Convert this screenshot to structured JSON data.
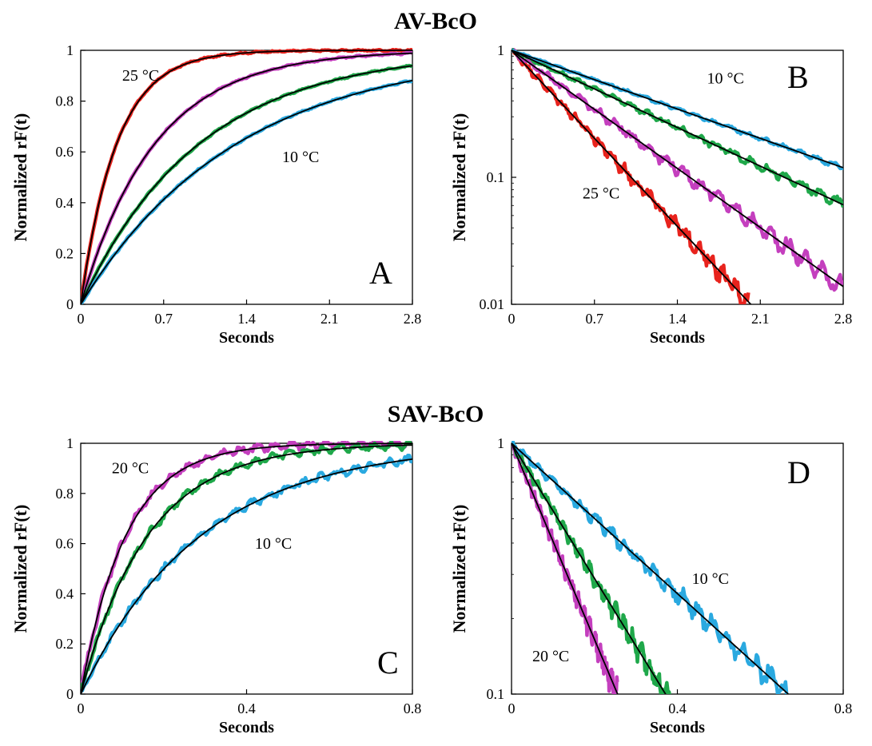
{
  "chart_data": [
    {
      "id": "A",
      "type": "line",
      "group_title": "AV-BcO",
      "panel_label": "A",
      "xlabel": "Seconds",
      "ylabel": "Normalized rF(t)",
      "xlim": [
        0,
        2.8
      ],
      "ylim": [
        0,
        1.0
      ],
      "y_scale": "linear",
      "x_ticks": [
        "0",
        "0.7",
        "1.4",
        "2.1",
        "2.8"
      ],
      "y_ticks": [
        "0",
        "0.2",
        "0.4",
        "0.6",
        "0.8",
        "1"
      ],
      "annotations": [
        {
          "text": "25 °C",
          "x": 0.35,
          "y": 0.88
        },
        {
          "text": "10 °C",
          "x": 1.7,
          "y": 0.56
        }
      ],
      "series": [
        {
          "color": "#e8231d",
          "rate_per_s": 3.3,
          "noise": 0.004
        },
        {
          "color": "#c43fbe",
          "rate_per_s": 1.6,
          "noise": 0.004
        },
        {
          "color": "#1fa84a",
          "rate_per_s": 1.0,
          "noise": 0.004
        },
        {
          "color": "#2aa9e0",
          "rate_per_s": 0.76,
          "noise": 0.004
        }
      ],
      "fit_color": "#000000"
    },
    {
      "id": "B",
      "type": "line",
      "panel_label": "B",
      "xlabel": "Seconds",
      "ylabel": "Normalized rF(t)",
      "xlim": [
        0,
        2.8
      ],
      "ylim": [
        0.01,
        1
      ],
      "y_scale": "log",
      "x_ticks": [
        "0",
        "0.7",
        "1.4",
        "2.1",
        "2.8"
      ],
      "y_ticks": [
        "0.01",
        "0.1",
        "1"
      ],
      "annotations": [
        {
          "text": "10  °C",
          "x": 1.65,
          "y": 0.55
        },
        {
          "text": "25 °C",
          "x": 0.6,
          "y": 0.068
        }
      ],
      "series": [
        {
          "color": "#e8231d",
          "rate_per_s": 2.28,
          "noise": 0.06,
          "x_end": 2.0
        },
        {
          "color": "#c43fbe",
          "rate_per_s": 1.53,
          "noise": 0.06,
          "x_end": 2.8
        },
        {
          "color": "#1fa84a",
          "rate_per_s": 1.0,
          "noise": 0.03,
          "x_end": 2.8
        },
        {
          "color": "#2aa9e0",
          "rate_per_s": 0.76,
          "noise": 0.015,
          "x_end": 2.8
        }
      ],
      "fit_color": "#000000"
    },
    {
      "id": "C",
      "type": "line",
      "group_title": "SAV-BcO",
      "panel_label": "C",
      "xlabel": "Seconds",
      "ylabel": "Normalized rF(t)",
      "xlim": [
        0,
        0.8
      ],
      "ylim": [
        0,
        1.0
      ],
      "y_scale": "linear",
      "x_ticks": [
        "0",
        "0.4",
        "0.8"
      ],
      "y_ticks": [
        "0",
        "0.2",
        "0.4",
        "0.6",
        "0.8",
        "1"
      ],
      "annotations": [
        {
          "text": "20 °C",
          "x": 0.075,
          "y": 0.88
        },
        {
          "text": "10 °C",
          "x": 0.42,
          "y": 0.58
        }
      ],
      "series": [
        {
          "color": "#c43fbe",
          "rate_per_s": 9.2,
          "noise": 0.02
        },
        {
          "color": "#1fa84a",
          "rate_per_s": 6.2,
          "noise": 0.02
        },
        {
          "color": "#2aa9e0",
          "rate_per_s": 3.45,
          "noise": 0.02
        }
      ],
      "fit_color": "#000000"
    },
    {
      "id": "D",
      "type": "line",
      "panel_label": "D",
      "xlabel": "Seconds",
      "ylabel": "Normalized rF(t)",
      "xlim": [
        0,
        0.8
      ],
      "ylim": [
        0.1,
        1
      ],
      "y_scale": "log",
      "x_ticks": [
        "0",
        "0.4",
        "0.8"
      ],
      "y_ticks": [
        "0.1",
        "1"
      ],
      "annotations": [
        {
          "text": "10 °C",
          "x": 0.435,
          "y": 0.275
        },
        {
          "text": "20 °C",
          "x": 0.05,
          "y": 0.135
        }
      ],
      "series": [
        {
          "color": "#c43fbe",
          "rate_per_s": 9.0,
          "noise": 0.04,
          "x_end": 0.255
        },
        {
          "color": "#1fa84a",
          "rate_per_s": 6.2,
          "noise": 0.04,
          "x_end": 0.4
        },
        {
          "color": "#2aa9e0",
          "rate_per_s": 3.45,
          "noise": 0.04,
          "x_end": 0.67
        }
      ],
      "fit_color": "#000000"
    }
  ]
}
